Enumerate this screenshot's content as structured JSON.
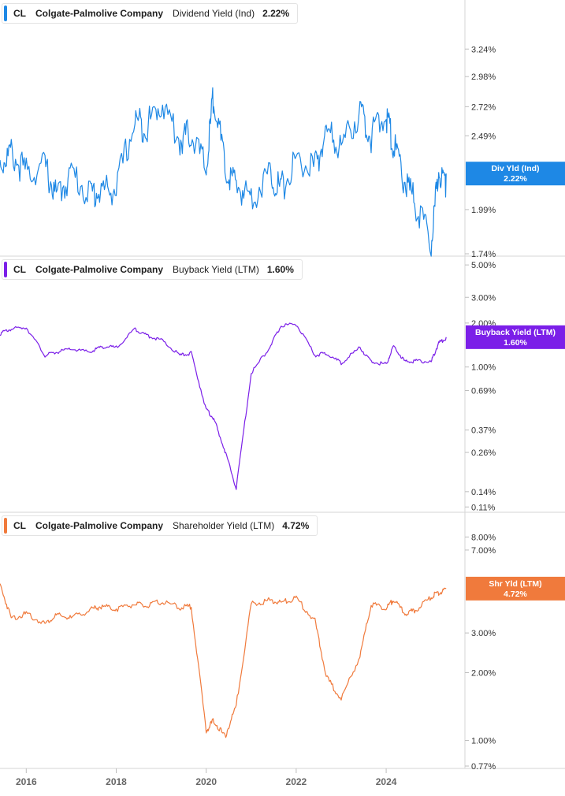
{
  "chart_data": [
    {
      "type": "line",
      "ticker": "CL",
      "company": "Colgate-Palmolive Company",
      "metric": "Dividend Yield (Ind)",
      "current_value": "2.22%",
      "flag_label": "Div Yld (Ind)",
      "flag_value": "2.22%",
      "color": "#1e88e5",
      "y_scale": "log",
      "ylim": [
        1.74,
        3.5
      ],
      "y_ticks": [
        "1.74%",
        "1.99%",
        "2.49%",
        "2.72%",
        "2.98%",
        "3.24%"
      ],
      "grid": false,
      "x": [
        "2015-06",
        "2015-09",
        "2016-01",
        "2016-06",
        "2016-09",
        "2017-01",
        "2017-06",
        "2017-09",
        "2018-01",
        "2018-06",
        "2018-09",
        "2019-01",
        "2019-06",
        "2019-09",
        "2020-01",
        "2020-03",
        "2020-06",
        "2020-09",
        "2021-01",
        "2021-06",
        "2021-09",
        "2022-01",
        "2022-06",
        "2022-09",
        "2023-01",
        "2023-06",
        "2023-09",
        "2024-01",
        "2024-03",
        "2024-06",
        "2024-09",
        "2025-01",
        "2025-03",
        "2025-05"
      ],
      "values": [
        2.35,
        2.42,
        2.28,
        2.33,
        2.12,
        2.28,
        2.14,
        2.16,
        2.18,
        2.68,
        2.62,
        2.83,
        2.52,
        2.58,
        2.3,
        2.92,
        2.3,
        2.2,
        2.12,
        2.28,
        2.17,
        2.37,
        2.31,
        2.58,
        2.47,
        2.75,
        2.55,
        2.72,
        2.48,
        2.22,
        2.07,
        1.83,
        2.3,
        2.22
      ]
    },
    {
      "type": "line",
      "ticker": "CL",
      "company": "Colgate-Palmolive Company",
      "metric": "Buyback Yield (LTM)",
      "current_value": "1.60%",
      "flag_label": "Buyback Yield (LTM)",
      "flag_value": "1.60%",
      "color": "#7b1fe8",
      "y_scale": "log",
      "ylim": [
        0.105,
        5.2
      ],
      "y_ticks": [
        "0.11%",
        "0.14%",
        "0.26%",
        "0.37%",
        "0.69%",
        "1.00%",
        "2.00%",
        "3.00%",
        "5.00%"
      ],
      "grid": false,
      "x": [
        "2015-06",
        "2015-09",
        "2016-01",
        "2016-06",
        "2016-09",
        "2017-01",
        "2017-06",
        "2017-09",
        "2018-01",
        "2018-06",
        "2018-09",
        "2019-01",
        "2019-06",
        "2019-09",
        "2020-01",
        "2020-03",
        "2020-06",
        "2020-09",
        "2021-01",
        "2021-06",
        "2021-09",
        "2022-01",
        "2022-06",
        "2022-09",
        "2023-01",
        "2023-06",
        "2023-09",
        "2024-01",
        "2024-03",
        "2024-06",
        "2024-09",
        "2025-01",
        "2025-03",
        "2025-05"
      ],
      "values": [
        1.72,
        1.85,
        1.9,
        1.22,
        1.28,
        1.35,
        1.28,
        1.4,
        1.38,
        1.85,
        1.68,
        1.55,
        1.22,
        1.26,
        0.52,
        0.45,
        0.27,
        0.15,
        0.92,
        1.4,
        1.95,
        2.0,
        1.22,
        1.26,
        1.08,
        1.38,
        1.1,
        1.06,
        1.42,
        1.1,
        1.12,
        1.1,
        1.48,
        1.6
      ]
    },
    {
      "type": "line",
      "ticker": "CL",
      "company": "Colgate-Palmolive Company",
      "metric": "Shareholder Yield (LTM)",
      "current_value": "4.72%",
      "flag_label": "Shr Yld (LTM)",
      "flag_value": "4.72%",
      "color": "#f07a3c",
      "y_scale": "log",
      "ylim": [
        0.77,
        9.5
      ],
      "y_ticks": [
        "0.77%",
        "1.00%",
        "2.00%",
        "3.00%",
        "7.00%",
        "8.00%"
      ],
      "grid": false,
      "x": [
        "2015-06",
        "2015-09",
        "2016-01",
        "2016-06",
        "2016-09",
        "2017-01",
        "2017-06",
        "2017-09",
        "2018-01",
        "2018-06",
        "2018-09",
        "2019-01",
        "2019-06",
        "2019-09",
        "2020-01",
        "2020-03",
        "2020-06",
        "2020-09",
        "2021-01",
        "2021-06",
        "2021-09",
        "2022-01",
        "2022-06",
        "2022-09",
        "2023-01",
        "2023-06",
        "2023-09",
        "2024-01",
        "2024-03",
        "2024-06",
        "2024-09",
        "2025-01",
        "2025-03",
        "2025-05"
      ],
      "values": [
        5.0,
        3.55,
        3.7,
        3.35,
        3.65,
        3.55,
        3.85,
        4.0,
        3.9,
        4.1,
        4.0,
        4.2,
        3.95,
        4.0,
        1.12,
        1.25,
        1.05,
        1.45,
        4.1,
        4.25,
        4.15,
        4.35,
        3.45,
        1.95,
        1.55,
        2.4,
        4.1,
        3.9,
        4.3,
        3.7,
        3.85,
        4.4,
        4.6,
        4.72
      ]
    }
  ],
  "x_axis": {
    "range": [
      "2015-06",
      "2025-10"
    ],
    "ticks": [
      "2016",
      "2018",
      "2020",
      "2022",
      "2024"
    ]
  }
}
